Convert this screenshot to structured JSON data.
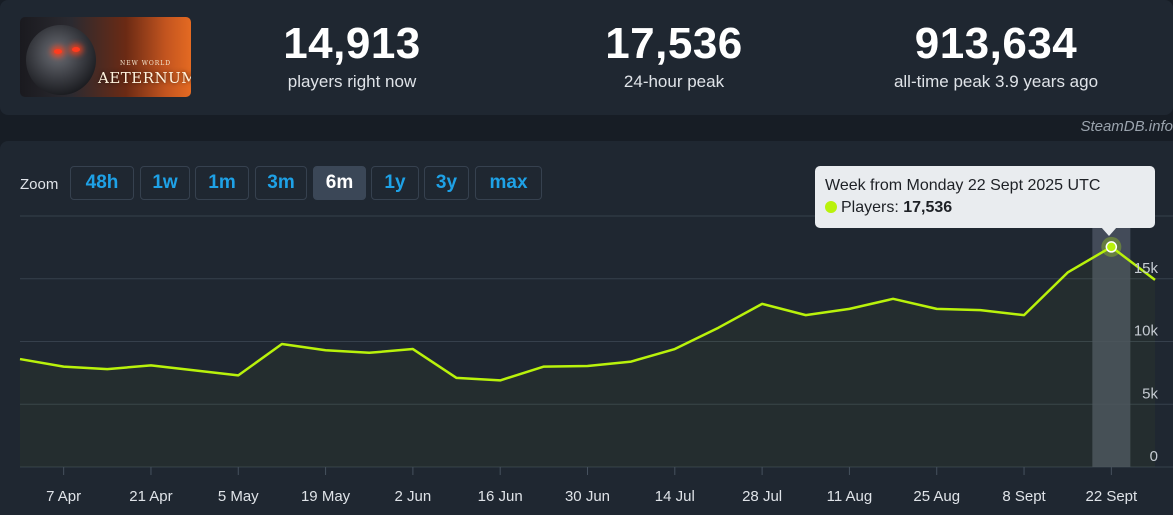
{
  "game": {
    "capsule_subtitle": "NEW WORLD",
    "capsule_title": "AETERNUM"
  },
  "stats": {
    "current": {
      "value": "14,913",
      "label": "players right now"
    },
    "peak_24h": {
      "value": "17,536",
      "label": "24-hour peak"
    },
    "all_time": {
      "value": "913,634",
      "label": "all-time peak 3.9 years ago"
    }
  },
  "watermark": "SteamDB.info",
  "zoom": {
    "label": "Zoom",
    "options": [
      "48h",
      "1w",
      "1m",
      "3m",
      "6m",
      "1y",
      "3y",
      "max"
    ],
    "selected": "6m"
  },
  "tooltip": {
    "title": "Week from Monday 22 Sept 2025 UTC",
    "series_label": "Players:",
    "value": "17,536"
  },
  "colors": {
    "line": "#b9f20b",
    "accent": "#1ea1e6",
    "background": "#1f2731"
  },
  "chart_data": {
    "type": "line",
    "title": "",
    "xlabel": "",
    "ylabel": "",
    "ylim": [
      0,
      20000
    ],
    "yticks": [
      0,
      5000,
      10000,
      15000
    ],
    "ytick_labels": [
      "0",
      "5k",
      "10k",
      "15k"
    ],
    "x_tick_labels": [
      "7 Apr",
      "21 Apr",
      "5 May",
      "19 May",
      "2 Jun",
      "16 Jun",
      "30 Jun",
      "14 Jul",
      "28 Jul",
      "11 Aug",
      "25 Aug",
      "8 Sept",
      "22 Sept"
    ],
    "grid": true,
    "legend": "none",
    "series": [
      {
        "name": "Players",
        "x": [
          "2025-03-31",
          "2025-04-07",
          "2025-04-14",
          "2025-04-21",
          "2025-04-28",
          "2025-05-05",
          "2025-05-12",
          "2025-05-19",
          "2025-05-26",
          "2025-06-02",
          "2025-06-09",
          "2025-06-16",
          "2025-06-23",
          "2025-06-30",
          "2025-07-07",
          "2025-07-14",
          "2025-07-21",
          "2025-07-28",
          "2025-08-04",
          "2025-08-11",
          "2025-08-18",
          "2025-08-25",
          "2025-09-01",
          "2025-09-08",
          "2025-09-15",
          "2025-09-22",
          "2025-09-29"
        ],
        "values": [
          8600,
          8000,
          7800,
          8100,
          7700,
          7300,
          9800,
          9300,
          9100,
          9400,
          7100,
          6900,
          8000,
          8050,
          8400,
          9400,
          11100,
          13000,
          12100,
          12600,
          13400,
          12600,
          12500,
          12100,
          15500,
          17536,
          14913
        ]
      }
    ],
    "highlighted_point": "2025-09-22"
  }
}
